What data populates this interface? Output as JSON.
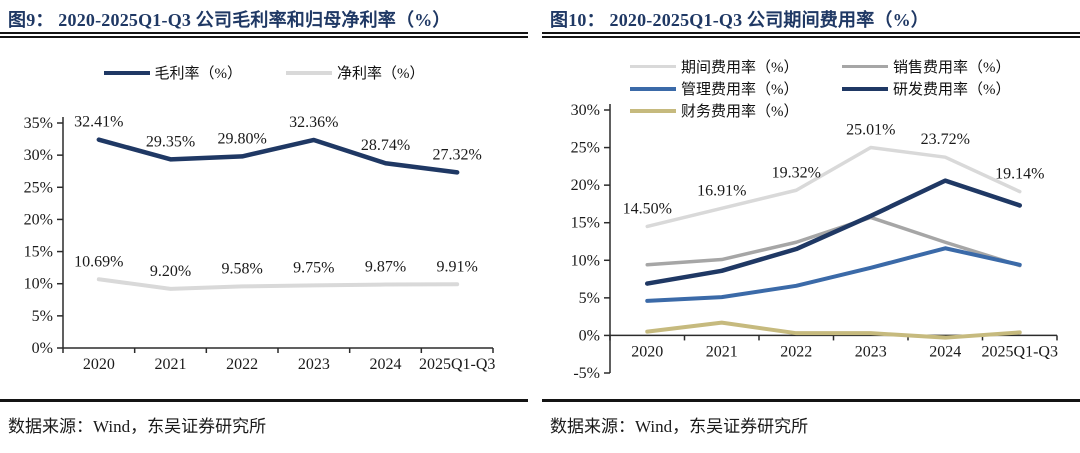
{
  "source_note": "数据来源：Wind，东吴证券研究所",
  "colors": {
    "title_navy": "#1f3864",
    "rule_dark": "#141414",
    "axis": "#2b2b2b",
    "series_navy": "#1f3864",
    "series_light_gray": "#d9d9d9",
    "series_mid_gray": "#a6a6a6",
    "series_blue": "#3b6aa8",
    "series_tan": "#c6ba7e"
  },
  "chart_data": [
    {
      "type": "line",
      "title": "图9： 2020-2025Q1-Q3 公司毛利率和归母净利率（%）",
      "categories": [
        "2020",
        "2021",
        "2022",
        "2023",
        "2024",
        "2025Q1-Q3"
      ],
      "ylim": [
        0,
        35
      ],
      "ytick": 5,
      "x_axis_at": 0,
      "grid": false,
      "legend_position": "top",
      "series": [
        {
          "name": "毛利率（%）",
          "color": "#1f3864",
          "width": 4.5,
          "values": [
            32.41,
            29.35,
            29.8,
            32.36,
            28.74,
            27.32
          ],
          "labels": [
            "32.41%",
            "29.35%",
            "29.80%",
            "32.36%",
            "28.74%",
            "27.32%"
          ]
        },
        {
          "name": "净利率（%）",
          "color": "#d9d9d9",
          "width": 4,
          "values": [
            10.69,
            9.2,
            9.58,
            9.75,
            9.87,
            9.91
          ],
          "labels": [
            "10.69%",
            "9.20%",
            "9.58%",
            "9.75%",
            "9.87%",
            "9.91%"
          ]
        }
      ]
    },
    {
      "type": "line",
      "title": "图10： 2020-2025Q1-Q3 公司期间费用率（%）",
      "categories": [
        "2020",
        "2021",
        "2022",
        "2023",
        "2024",
        "2025Q1-Q3"
      ],
      "ylim": [
        -5,
        30
      ],
      "ytick": 5,
      "x_axis_at": 0,
      "grid": false,
      "legend_position": "top",
      "series": [
        {
          "name": "期间费用率（%）",
          "color": "#d9d9d9",
          "width": 3.5,
          "values": [
            14.5,
            16.91,
            19.32,
            25.01,
            23.72,
            19.14
          ],
          "labels": [
            "14.50%",
            "16.91%",
            "19.32%",
            "25.01%",
            "23.72%",
            "19.14%"
          ]
        },
        {
          "name": "销售费用率（%）",
          "color": "#a6a6a6",
          "width": 3.5,
          "values": [
            9.4,
            10.1,
            12.4,
            15.7,
            12.4,
            9.3
          ],
          "labels": null
        },
        {
          "name": "管理费用率（%）",
          "color": "#3b6aa8",
          "width": 4,
          "values": [
            4.6,
            5.1,
            6.6,
            9.0,
            11.6,
            9.4
          ],
          "labels": null
        },
        {
          "name": "研发费用率（%）",
          "color": "#1f3864",
          "width": 4.5,
          "values": [
            6.9,
            8.6,
            11.5,
            15.9,
            20.6,
            17.3
          ],
          "labels": null
        },
        {
          "name": "财务费用率（%）",
          "color": "#c6ba7e",
          "width": 4,
          "values": [
            0.5,
            1.7,
            0.3,
            0.3,
            -0.3,
            0.4
          ],
          "labels": null
        }
      ]
    }
  ]
}
